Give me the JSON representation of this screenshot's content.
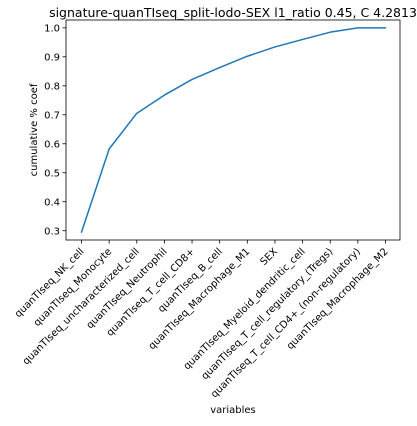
{
  "chart_data": {
    "type": "line",
    "title": "signature-quanTIseq_split-lodo-SEX l1_ratio 0.45, C 4.2813",
    "xlabel": "variables",
    "ylabel": "cumulative % coef",
    "categories": [
      "quanTIseq_NK_cell",
      "quanTIseq_Monocyte",
      "quanTIseq_uncharacterized_cell",
      "quanTIseq_Neutrophil",
      "quanTIseq_T_cell_CD8+",
      "quanTIseq_B_cell",
      "quanTIseq_Macrophage_M1",
      "SEX",
      "quanTIseq_Myeloid_dendritic_cell",
      "quanTIseq_T_cell_regulatory_(Tregs)",
      "quanTIseq_T_cell_CD4+_(non-regulatory)",
      "quanTIseq_Macrophage_M2"
    ],
    "series": [
      {
        "values": [
          0.295,
          0.582,
          0.705,
          0.768,
          0.822,
          0.863,
          0.902,
          0.934,
          0.96,
          0.985,
          1.0,
          1.0
        ]
      }
    ],
    "yticks": [
      "0.3",
      "0.4",
      "0.5",
      "0.6",
      "0.7",
      "0.8",
      "0.9",
      "1.0"
    ],
    "ylim": [
      0.268,
      1.027
    ],
    "grid": false,
    "line_color": "#1f77b4"
  }
}
